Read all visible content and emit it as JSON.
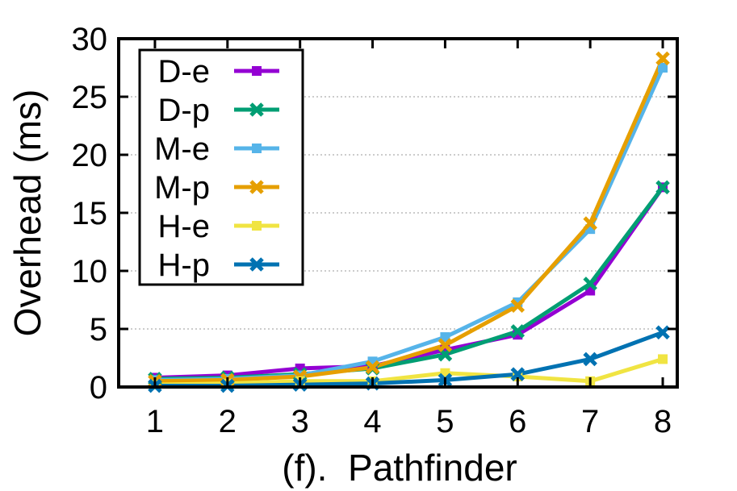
{
  "chart_data": {
    "type": "line",
    "title": "",
    "xlabel": "(f).  Pathfinder",
    "ylabel": "Overhead (ms)",
    "x": [
      1,
      2,
      3,
      4,
      5,
      6,
      7,
      8
    ],
    "xlim": [
      0.5,
      8.2
    ],
    "ylim": [
      0,
      30
    ],
    "xticks": [
      1,
      2,
      3,
      4,
      5,
      6,
      7,
      8
    ],
    "yticks": [
      0,
      5,
      10,
      15,
      20,
      25,
      30
    ],
    "grid": "horizontal dotted",
    "legend_position": "top-left",
    "series": [
      {
        "name": "D-e",
        "color": "#9400d3",
        "marker": "square",
        "values": [
          0.8,
          1.0,
          1.6,
          1.8,
          3.2,
          4.5,
          8.3,
          17.2
        ]
      },
      {
        "name": "D-p",
        "color": "#009e73",
        "marker": "x",
        "values": [
          0.7,
          0.8,
          1.1,
          1.6,
          2.8,
          4.8,
          8.9,
          17.2
        ]
      },
      {
        "name": "M-e",
        "color": "#56b4e9",
        "marker": "square",
        "values": [
          0.6,
          0.7,
          1.0,
          2.2,
          4.3,
          7.3,
          13.6,
          27.5
        ]
      },
      {
        "name": "M-p",
        "color": "#e69f00",
        "marker": "x",
        "values": [
          0.5,
          0.6,
          0.9,
          1.7,
          3.6,
          7.0,
          14.1,
          28.3
        ]
      },
      {
        "name": "H-e",
        "color": "#f0e442",
        "marker": "square",
        "values": [
          0.2,
          0.3,
          0.5,
          0.5,
          1.2,
          0.9,
          0.5,
          2.4
        ]
      },
      {
        "name": "H-p",
        "color": "#0072b2",
        "marker": "x",
        "values": [
          0.1,
          0.1,
          0.2,
          0.3,
          0.6,
          1.1,
          2.4,
          4.7
        ]
      }
    ]
  }
}
